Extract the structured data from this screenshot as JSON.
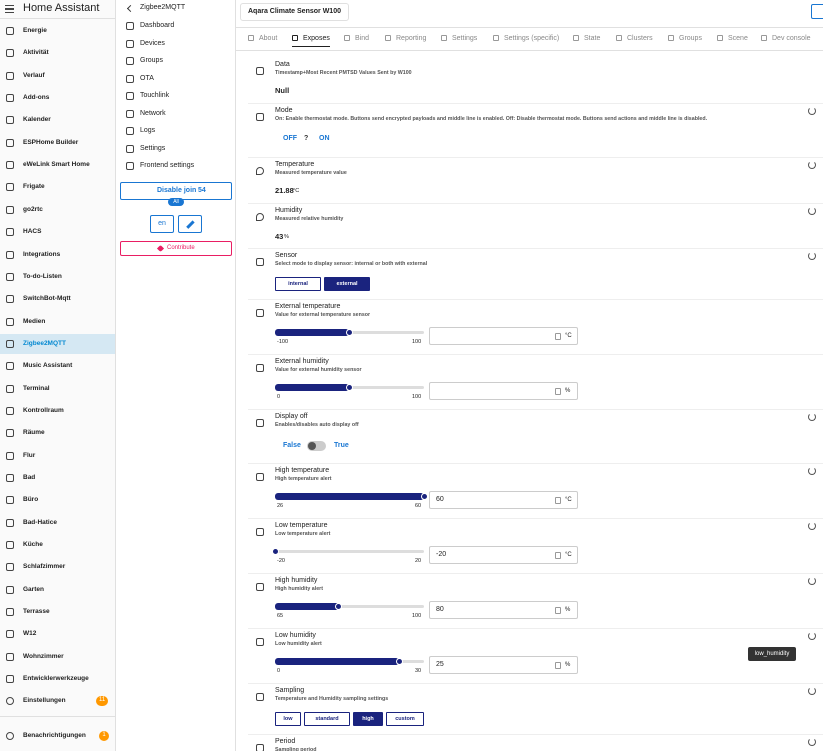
{
  "sidebar": {
    "title": "Home Assistant",
    "items": [
      {
        "label": "Energie"
      },
      {
        "label": "Aktivität"
      },
      {
        "label": "Verlauf"
      },
      {
        "label": "Add-ons"
      },
      {
        "label": "Kalender"
      },
      {
        "label": "ESPHome Builder"
      },
      {
        "label": "eWeLink Smart Home"
      },
      {
        "label": "Frigate"
      },
      {
        "label": "go2rtc"
      },
      {
        "label": "HACS"
      },
      {
        "label": "Integrations"
      },
      {
        "label": "To-do-Listen"
      },
      {
        "label": "SwitchBot-Mqtt"
      },
      {
        "label": "Medien"
      },
      {
        "label": "Zigbee2MQTT",
        "active": true
      },
      {
        "label": "Music Assistant"
      },
      {
        "label": "Terminal"
      },
      {
        "label": "Kontrollraum"
      },
      {
        "label": "Räume"
      },
      {
        "label": "Flur"
      },
      {
        "label": "Bad"
      },
      {
        "label": "Büro"
      },
      {
        "label": "Bad-Hatice"
      },
      {
        "label": "Küche"
      },
      {
        "label": "Schlafzimmer"
      },
      {
        "label": "Garten"
      },
      {
        "label": "Terrasse"
      },
      {
        "label": "W12"
      },
      {
        "label": "Wohnzimmer"
      },
      {
        "label": "Entwicklerwerkzeuge"
      }
    ],
    "settings": {
      "label": "Einstellungen",
      "badge": "11"
    },
    "notifications": {
      "label": "Benachrichtigungen",
      "badge": "1"
    }
  },
  "z2m": {
    "title": "Zigbee2MQTT",
    "items": [
      "Dashboard",
      "Devices",
      "Groups",
      "OTA",
      "Touchlink",
      "Network",
      "Logs",
      "Settings",
      "Frontend settings"
    ],
    "join": {
      "label": "Disable join",
      "count": "54",
      "target": "All"
    },
    "language": "en",
    "contribute": "Contribute"
  },
  "device": {
    "name": "Aqara Climate Sensor W100",
    "tabs": [
      {
        "label": "About"
      },
      {
        "label": "Exposes",
        "active": true
      },
      {
        "label": "Bind"
      },
      {
        "label": "Reporting"
      },
      {
        "label": "Settings"
      },
      {
        "label": "Settings (specific)"
      },
      {
        "label": "State"
      },
      {
        "label": "Clusters"
      },
      {
        "label": "Groups"
      },
      {
        "label": "Scene"
      },
      {
        "label": "Dev console"
      }
    ],
    "exposes": [
      {
        "kind": "text",
        "name": "Data",
        "description": "Timestamp+Most Recent PMTSD Values Sent by W100",
        "value": "Null"
      },
      {
        "kind": "choice",
        "name": "Mode",
        "description": "On: Enable thermostat mode. Buttons send encrypted payloads and middle line is enabled. Off: Disable thermostat mode. Buttons send actions and middle line is disabled.",
        "options": [
          "OFF",
          "?",
          "ON"
        ],
        "refresh": true
      },
      {
        "kind": "reading",
        "name": "Temperature",
        "description": "Measured temperature value",
        "value": 21.88,
        "unit": "°C",
        "refresh": true
      },
      {
        "kind": "reading",
        "name": "Humidity",
        "description": "Measured relative humidity",
        "value": 43,
        "unit": "%",
        "refresh": true
      },
      {
        "kind": "buttons",
        "name": "Sensor",
        "description": "Select mode to display sensor: internal or both with external",
        "options": [
          "internal",
          "external"
        ],
        "selected": 1,
        "refresh": true
      },
      {
        "kind": "range",
        "name": "External temperature",
        "description": "Value for external temperature sensor",
        "min": -100,
        "max": 100,
        "value": null,
        "unit": "°C"
      },
      {
        "kind": "range",
        "name": "External humidity",
        "description": "Value for external humidity sensor",
        "min": 0,
        "max": 100,
        "value": null,
        "unit": "%"
      },
      {
        "kind": "toggle",
        "name": "Display off",
        "description": "Enables/disables auto display off",
        "off": "False",
        "on": "True",
        "state": false,
        "refresh": true
      },
      {
        "kind": "range",
        "name": "High temperature",
        "description": "High temperature alert",
        "min": 26,
        "max": 60,
        "value": 60,
        "unit": "°C",
        "refresh": true
      },
      {
        "kind": "range",
        "name": "Low temperature",
        "description": "Low temperature alert",
        "min": -20,
        "max": 20,
        "value": -20,
        "unit": "°C",
        "refresh": true
      },
      {
        "kind": "range",
        "name": "High humidity",
        "description": "High humidity alert",
        "min": 65,
        "max": 100,
        "value": 80,
        "unit": "%",
        "refresh": true
      },
      {
        "kind": "range",
        "name": "Low humidity",
        "description": "Low humidity alert",
        "min": 0,
        "max": 30,
        "value": 25,
        "unit": "%",
        "refresh": true
      },
      {
        "kind": "buttons",
        "name": "Sampling",
        "description": "Temperature and Humidity sampling settings",
        "options": [
          "low",
          "standard",
          "high",
          "custom"
        ],
        "selected": 2,
        "refresh": true
      },
      {
        "kind": "text",
        "name": "Period",
        "description": "Sampling period",
        "refresh": true
      }
    ]
  },
  "tooltip": "low_humidity"
}
